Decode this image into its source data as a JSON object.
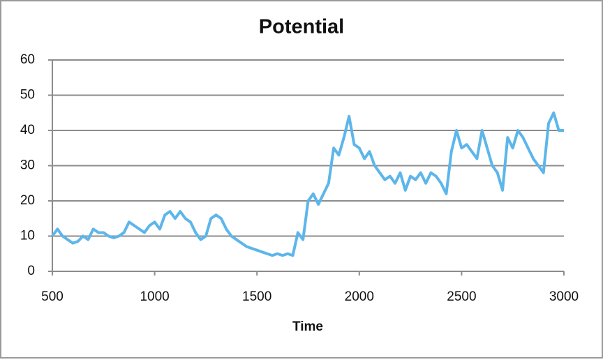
{
  "chart_data": {
    "type": "line",
    "title": "Potential",
    "x_label": "Time",
    "x": [
      500,
      525,
      550,
      575,
      600,
      625,
      650,
      675,
      700,
      725,
      750,
      775,
      800,
      825,
      850,
      875,
      900,
      925,
      950,
      975,
      1000,
      1025,
      1050,
      1075,
      1100,
      1125,
      1150,
      1175,
      1200,
      1225,
      1250,
      1275,
      1300,
      1325,
      1350,
      1375,
      1400,
      1425,
      1450,
      1475,
      1500,
      1525,
      1550,
      1575,
      1600,
      1625,
      1650,
      1675,
      1700,
      1725,
      1750,
      1775,
      1800,
      1825,
      1850,
      1875,
      1900,
      1925,
      1950,
      1975,
      2000,
      2025,
      2050,
      2075,
      2100,
      2125,
      2150,
      2175,
      2200,
      2225,
      2250,
      2275,
      2300,
      2325,
      2350,
      2375,
      2400,
      2425,
      2450,
      2475,
      2500,
      2525,
      2550,
      2575,
      2600,
      2625,
      2650,
      2675,
      2700,
      2725,
      2750,
      2775,
      2800,
      2825,
      2850,
      2875,
      2900,
      2925,
      2950,
      2975,
      3000
    ],
    "series": [
      {
        "color": "#5db6ea",
        "values": [
          10,
          12,
          10,
          9,
          8,
          8.5,
          10,
          9,
          12,
          11,
          11,
          10,
          9.5,
          10,
          11,
          14,
          13,
          12,
          11,
          13,
          14,
          12,
          16,
          17,
          15,
          17,
          15,
          14,
          11,
          9,
          10,
          15,
          16,
          15,
          12,
          10,
          9,
          8,
          7,
          6.5,
          6,
          5.5,
          5,
          4.5,
          5,
          4.5,
          5,
          4.5,
          11,
          9,
          20,
          22,
          19,
          22,
          25,
          35,
          33,
          38,
          44,
          36,
          35,
          32,
          34,
          30,
          28,
          26,
          27,
          25,
          28,
          23,
          27,
          26,
          28,
          25,
          28,
          27,
          25,
          22,
          34,
          40,
          35,
          36,
          34,
          32,
          40,
          35,
          30,
          28,
          23,
          38,
          35,
          40,
          38,
          35,
          32,
          30,
          28,
          42,
          45,
          40,
          40
        ]
      }
    ],
    "xlim": [
      500,
      3000
    ],
    "xticks": [
      500,
      1000,
      1500,
      2000,
      2500,
      3000
    ],
    "ylim": [
      0,
      60
    ],
    "yticks": [
      0,
      10,
      20,
      30,
      40,
      50,
      60
    ],
    "grid": true
  }
}
